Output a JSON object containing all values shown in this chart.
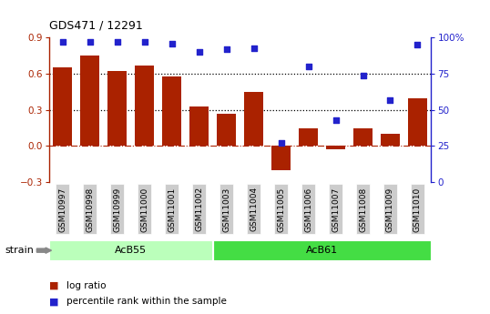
{
  "title": "GDS471 / 12291",
  "samples": [
    "GSM10997",
    "GSM10998",
    "GSM10999",
    "GSM11000",
    "GSM11001",
    "GSM11002",
    "GSM11003",
    "GSM11004",
    "GSM11005",
    "GSM11006",
    "GSM11007",
    "GSM11008",
    "GSM11009",
    "GSM11010"
  ],
  "log_ratio": [
    0.65,
    0.75,
    0.62,
    0.67,
    0.58,
    0.33,
    0.27,
    0.45,
    -0.2,
    0.15,
    -0.03,
    0.15,
    0.1,
    0.4
  ],
  "percentile_rank": [
    97,
    97,
    97,
    97,
    96,
    90,
    92,
    93,
    27,
    80,
    43,
    74,
    57,
    95
  ],
  "bar_color": "#aa2200",
  "dot_color": "#2222cc",
  "ylim_left": [
    -0.3,
    0.9
  ],
  "ylim_right": [
    0,
    100
  ],
  "yticks_left": [
    -0.3,
    0.0,
    0.3,
    0.6,
    0.9
  ],
  "yticks_right": [
    0,
    25,
    50,
    75,
    100
  ],
  "hlines": [
    0.3,
    0.6
  ],
  "zero_line": 0.0,
  "groups": [
    {
      "label": "AcB55",
      "start": 0,
      "end": 5,
      "color": "#bbffbb"
    },
    {
      "label": "AcB61",
      "start": 6,
      "end": 13,
      "color": "#44dd44"
    }
  ],
  "group_divider": 5.5,
  "strain_label": "strain",
  "legend_bar_label": "log ratio",
  "legend_dot_label": "percentile rank within the sample",
  "tick_bg_color": "#cccccc",
  "plot_bg_color": "#ffffff"
}
